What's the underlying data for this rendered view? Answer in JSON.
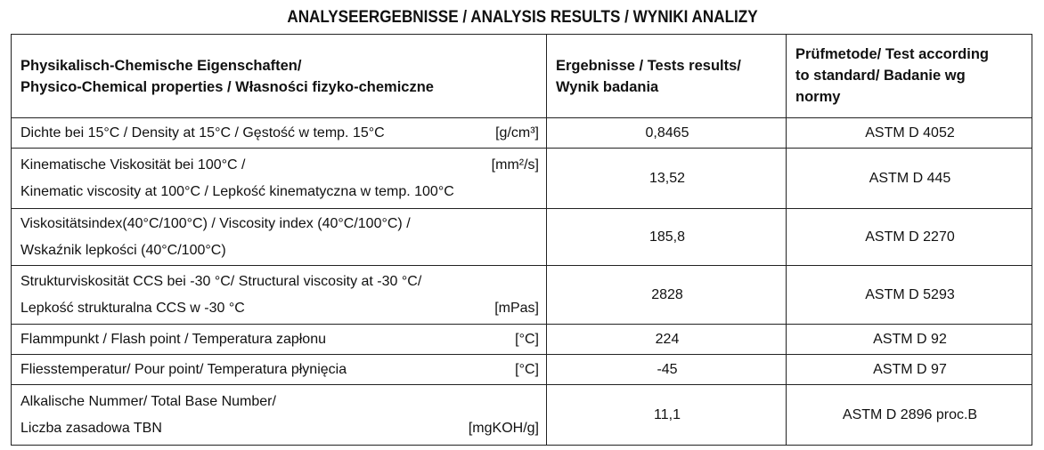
{
  "title": "ANALYSEERGEBNISSE / ANALYSIS RESULTS / WYNIKI  ANALIZY",
  "table": {
    "header": [
      [
        "Physikalisch-Chemische Eigenschaften/",
        "Physico-Chemical properties / Własności fizyko-chemiczne"
      ],
      [
        "Ergebnisse / Tests results/",
        "Wynik badania"
      ],
      [
        "Prüfmetode/ Test according",
        "to standard/ Badanie wg",
        "normy"
      ]
    ],
    "rows": [
      {
        "property": [
          "Dichte bei 15°C / Density at 15°C / Gęstość w temp. 15°C"
        ],
        "unit": "[g/cm³]",
        "result": "0,8465",
        "method": "ASTM D 4052"
      },
      {
        "property": [
          "Kinematische Viskosität bei 100°C /",
          "Kinematic viscosity at 100°C / Lepkość kinematyczna w temp. 100°C"
        ],
        "unit": "[mm²/s]",
        "result": "13,52",
        "method": "ASTM D 445"
      },
      {
        "property": [
          "Viskositätsindex(40°C/100°C) / Viscosity index (40°C/100°C) /",
          "Wskaźnik lepkości (40°C/100°C)"
        ],
        "result": "185,8",
        "method": "ASTM D 2270"
      },
      {
        "property": [
          "Strukturviskosität CCS bei -30 °C/ Structural viscosity at -30 °C/",
          "Lepkość strukturalna CCS w -30 °C"
        ],
        "unit": "[mPas]",
        "result": "2828",
        "method": "ASTM D 5293"
      },
      {
        "property": [
          "Flammpunkt / Flash point / Temperatura zapłonu"
        ],
        "unit": "[°C]",
        "result": "224",
        "method": "ASTM D 92"
      },
      {
        "property": [
          "Fliesstemperatur/ Pour point/ Temperatura płynięcia"
        ],
        "unit": "[°C]",
        "result": "-45",
        "method": "ASTM D 97"
      },
      {
        "property": [
          "Alkalische Nummer/ Total Base Number/",
          "Liczba zasadowa TBN"
        ],
        "unit": "[mgKOH/g]",
        "result": "11,1",
        "method": "ASTM D 2896 proc.B"
      }
    ]
  }
}
